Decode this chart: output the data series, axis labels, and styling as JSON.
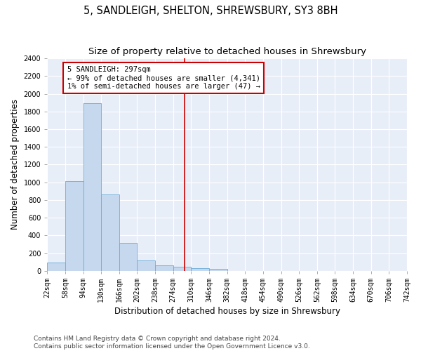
{
  "title": "5, SANDLEIGH, SHELTON, SHREWSBURY, SY3 8BH",
  "subtitle": "Size of property relative to detached houses in Shrewsbury",
  "xlabel": "Distribution of detached houses by size in Shrewsbury",
  "ylabel": "Number of detached properties",
  "bar_values": [
    95,
    1010,
    1890,
    860,
    315,
    115,
    58,
    48,
    30,
    20,
    0,
    0,
    0,
    0,
    0,
    0,
    0,
    0,
    0,
    0
  ],
  "bin_labels": [
    "22sqm",
    "58sqm",
    "94sqm",
    "130sqm",
    "166sqm",
    "202sqm",
    "238sqm",
    "274sqm",
    "310sqm",
    "346sqm",
    "382sqm",
    "418sqm",
    "454sqm",
    "490sqm",
    "526sqm",
    "562sqm",
    "598sqm",
    "634sqm",
    "670sqm",
    "706sqm",
    "742sqm"
  ],
  "bar_color": "#c5d8ee",
  "bar_edge_color": "#6aacd6",
  "vline_color": "#cc0000",
  "annotation_text": "5 SANDLEIGH: 297sqm\n← 99% of detached houses are smaller (4,341)\n1% of semi-detached houses are larger (47) →",
  "annotation_box_color": "#cc0000",
  "ylim": [
    0,
    2400
  ],
  "yticks": [
    0,
    200,
    400,
    600,
    800,
    1000,
    1200,
    1400,
    1600,
    1800,
    2000,
    2200,
    2400
  ],
  "bg_color": "#e8eef8",
  "grid_color": "#ffffff",
  "footer1": "Contains HM Land Registry data © Crown copyright and database right 2024.",
  "footer2": "Contains public sector information licensed under the Open Government Licence v3.0.",
  "title_fontsize": 10.5,
  "subtitle_fontsize": 9.5,
  "axis_label_fontsize": 8.5,
  "tick_fontsize": 7,
  "footer_fontsize": 6.5,
  "vline_x_data": 7.65
}
